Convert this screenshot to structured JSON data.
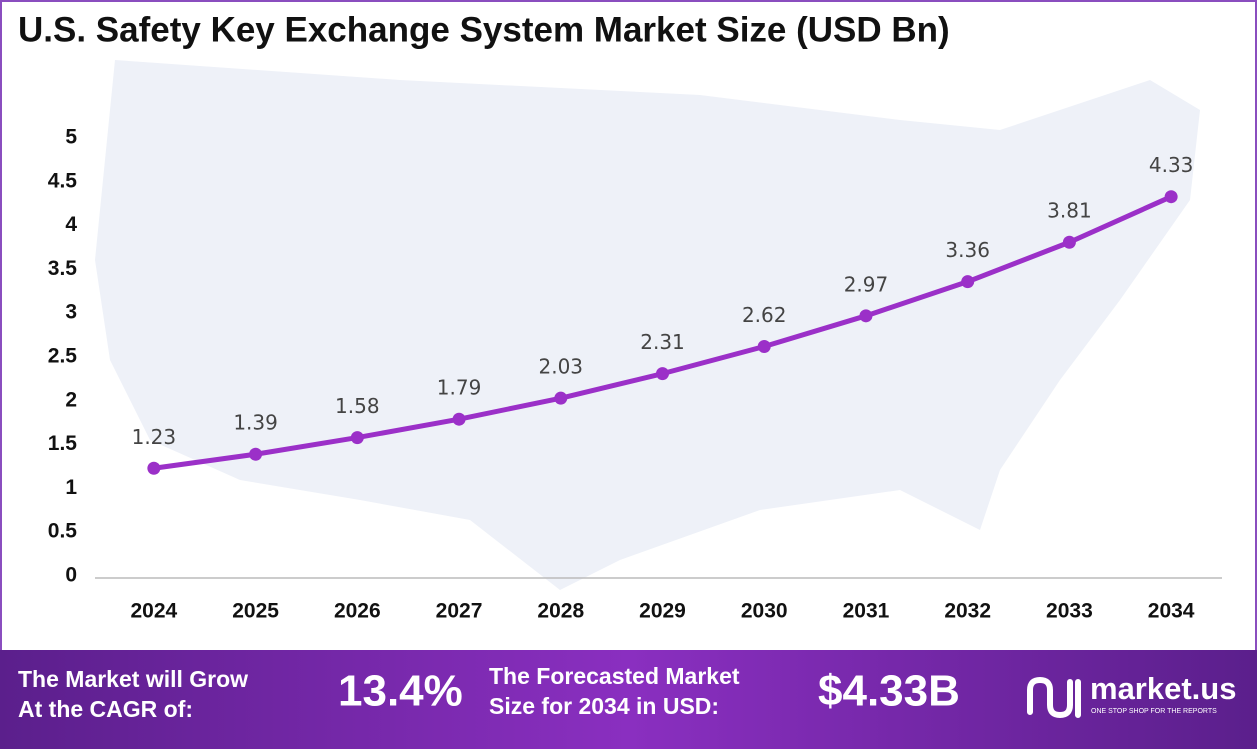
{
  "chart_data": {
    "type": "line",
    "title": "U.S. Safety Key Exchange System Market Size (USD Bn)",
    "categories": [
      "2024",
      "2025",
      "2026",
      "2027",
      "2028",
      "2029",
      "2030",
      "2031",
      "2032",
      "2033",
      "2034"
    ],
    "values": [
      1.23,
      1.39,
      1.58,
      1.79,
      2.03,
      2.31,
      2.62,
      2.97,
      3.36,
      3.81,
      4.33
    ],
    "color": "#9b30c8",
    "ylim": [
      0,
      5
    ],
    "yticks": [
      0,
      0.5,
      1,
      1.5,
      2,
      2.5,
      3,
      3.5,
      4,
      4.5,
      5
    ],
    "grid": false
  },
  "footer": {
    "cagr_label": [
      "The Market will Grow",
      "At the CAGR of:"
    ],
    "cagr_value": "13.4%",
    "forecast_label": [
      "The Forecasted Market",
      "Size for 2034 in USD:"
    ],
    "forecast_value": "$4.33B",
    "brand": "market.us",
    "tagline": "ONE STOP SHOP FOR THE REPORTS"
  }
}
